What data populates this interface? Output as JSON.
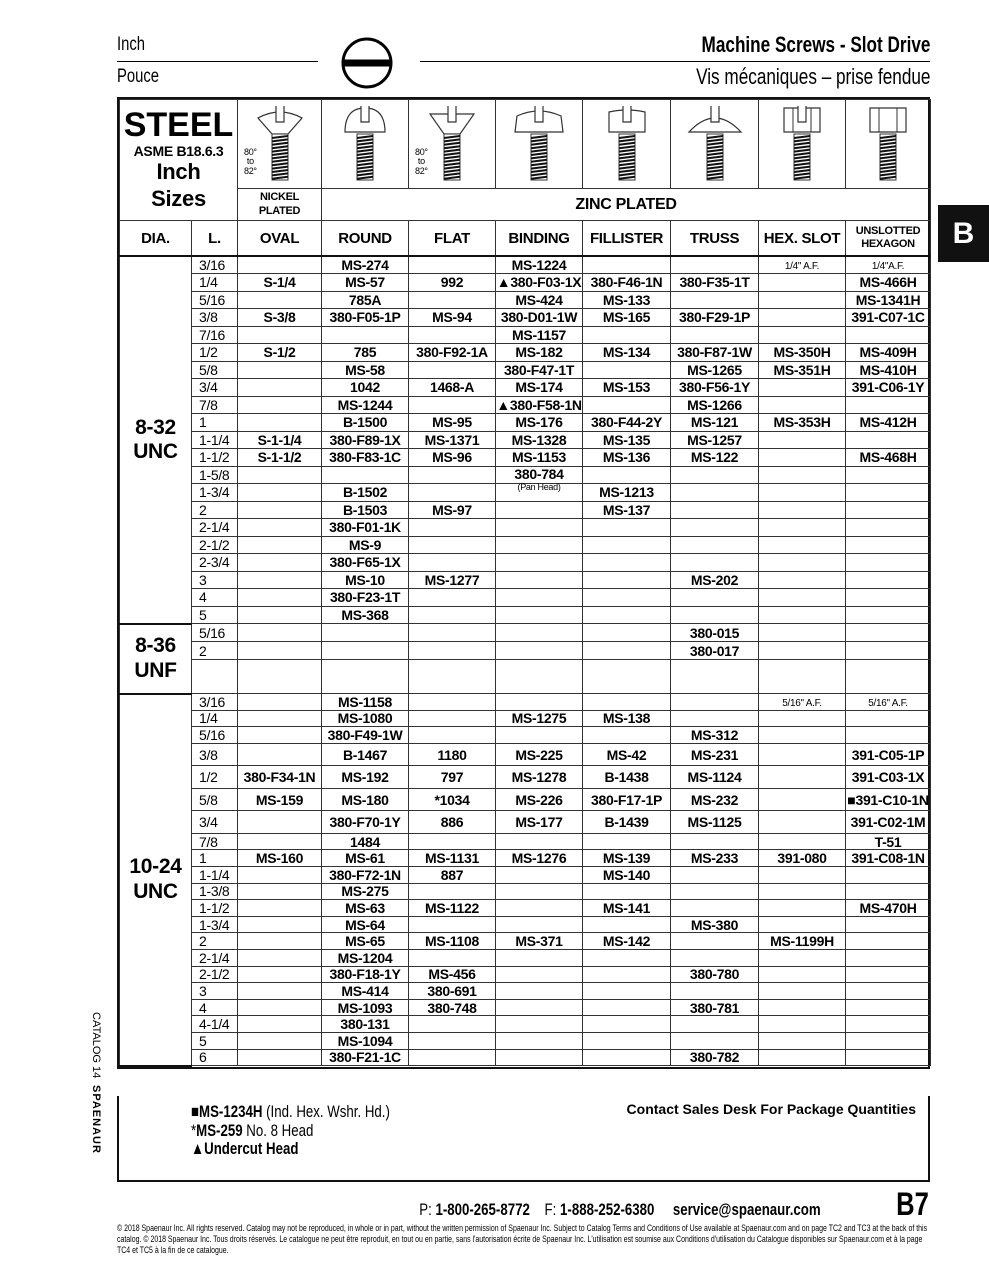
{
  "header": {
    "left_en": "Inch",
    "left_fr": "Pouce",
    "title_en": "Machine Screws - Slot Drive",
    "title_fr": "Vis mécaniques – prise fendue",
    "drive_icon": "slot-drive-icon"
  },
  "section_tab": "B",
  "table": {
    "material": "STEEL",
    "standard": "ASME B18.6.3",
    "sizes_label_1": "Inch",
    "sizes_label_2": "Sizes",
    "angle_note": [
      "80°",
      "to",
      "82°"
    ],
    "nickel_plated": [
      "NICKEL",
      "PLATED"
    ],
    "zinc_plated": "ZINC PLATED",
    "dia_header": "DIA.",
    "len_header": "L.",
    "columns": [
      {
        "label": "OVAL",
        "icon": "oval-head-screw-icon"
      },
      {
        "label": "ROUND",
        "icon": "round-head-screw-icon"
      },
      {
        "label": "FLAT",
        "icon": "flat-head-screw-icon"
      },
      {
        "label": "BINDING",
        "icon": "binding-head-screw-icon"
      },
      {
        "label": "FILLISTER",
        "icon": "fillister-head-screw-icon"
      },
      {
        "label": "TRUSS",
        "icon": "truss-head-screw-icon"
      },
      {
        "label": "HEX. SLOT",
        "icon": "hex-slot-head-screw-icon"
      },
      {
        "label": "UNSLOTTED HEXAGON",
        "icon": "unslotted-hex-head-screw-icon"
      }
    ],
    "groups": [
      {
        "dia": [
          "8-32",
          "UNC"
        ],
        "rows": [
          {
            "len": "3/16",
            "cells": [
              "",
              "MS-274",
              "",
              "MS-1224",
              "",
              "",
              "1/4\" A.F.",
              "1/4\"A.F."
            ]
          },
          {
            "len": "1/4",
            "cells": [
              "S-1/4",
              "MS-57",
              "992",
              "▲380-F03-1X",
              "380-F46-1N",
              "380-F35-1T",
              "",
              "MS-466H"
            ]
          },
          {
            "len": "5/16",
            "cells": [
              "",
              "785A",
              "",
              "MS-424",
              "MS-133",
              "",
              "",
              "MS-1341H"
            ]
          },
          {
            "len": "3/8",
            "cells": [
              "S-3/8",
              "380-F05-1P",
              "MS-94",
              "380-D01-1W",
              "MS-165",
              "380-F29-1P",
              "",
              "391-C07-1C"
            ]
          },
          {
            "len": "7/16",
            "cells": [
              "",
              "",
              "",
              "MS-1157",
              "",
              "",
              "",
              ""
            ]
          },
          {
            "len": "1/2",
            "cells": [
              "S-1/2",
              "785",
              "380-F92-1A",
              "MS-182",
              "MS-134",
              "380-F87-1W",
              "MS-350H",
              "MS-409H"
            ]
          },
          {
            "len": "5/8",
            "cells": [
              "",
              "MS-58",
              "",
              "380-F47-1T",
              "",
              "MS-1265",
              "MS-351H",
              "MS-410H"
            ]
          },
          {
            "len": "3/4",
            "cells": [
              "",
              "1042",
              "1468-A",
              "MS-174",
              "MS-153",
              "380-F56-1Y",
              "",
              "391-C06-1Y"
            ]
          },
          {
            "len": "7/8",
            "cells": [
              "",
              "MS-1244",
              "",
              "▲380-F58-1N",
              "",
              "MS-1266",
              "",
              ""
            ]
          },
          {
            "len": "1",
            "cells": [
              "",
              "B-1500",
              "MS-95",
              "MS-176",
              "380-F44-2Y",
              "MS-121",
              "MS-353H",
              "MS-412H"
            ]
          },
          {
            "len": "1-1/4",
            "cells": [
              "S-1-1/4",
              "380-F89-1X",
              "MS-1371",
              "MS-1328",
              "MS-135",
              "MS-1257",
              "",
              ""
            ]
          },
          {
            "len": "1-1/2",
            "cells": [
              "S-1-1/2",
              "380-F83-1C",
              "MS-96",
              "MS-1153",
              "MS-136",
              "MS-122",
              "",
              "MS-468H"
            ]
          },
          {
            "len": "1-5/8",
            "cells": [
              "",
              "",
              "",
              "380-784",
              "",
              "",
              "",
              ""
            ],
            "note": "(Pan Head)"
          },
          {
            "len": "1-3/4",
            "cells": [
              "",
              "B-1502",
              "",
              "",
              "MS-1213",
              "",
              "",
              ""
            ]
          },
          {
            "len": "2",
            "cells": [
              "",
              "B-1503",
              "MS-97",
              "",
              "MS-137",
              "",
              "",
              ""
            ]
          },
          {
            "len": "2-1/4",
            "cells": [
              "",
              "380-F01-1K",
              "",
              "",
              "",
              "",
              "",
              ""
            ]
          },
          {
            "len": "2-1/2",
            "cells": [
              "",
              "MS-9",
              "",
              "",
              "",
              "",
              "",
              ""
            ]
          },
          {
            "len": "2-3/4",
            "cells": [
              "",
              "380-F65-1X",
              "",
              "",
              "",
              "",
              "",
              ""
            ]
          },
          {
            "len": "3",
            "cells": [
              "",
              "MS-10",
              "MS-1277",
              "",
              "",
              "MS-202",
              "",
              ""
            ]
          },
          {
            "len": "4",
            "cells": [
              "",
              "380-F23-1T",
              "",
              "",
              "",
              "",
              "",
              ""
            ]
          },
          {
            "len": "5",
            "cells": [
              "",
              "MS-368",
              "",
              "",
              "",
              "",
              "",
              ""
            ]
          }
        ]
      },
      {
        "dia": [
          "8-36",
          "UNF"
        ],
        "rows": [
          {
            "len": "5/16",
            "cells": [
              "",
              "",
              "",
              "",
              "",
              "380-015",
              "",
              ""
            ]
          },
          {
            "len": "2",
            "cells": [
              "",
              "",
              "",
              "",
              "",
              "380-017",
              "",
              ""
            ]
          },
          {
            "len": "",
            "cells": [
              "",
              "",
              "",
              "",
              "",
              "",
              "",
              ""
            ]
          }
        ]
      },
      {
        "dia": [
          "10-24",
          "UNC"
        ],
        "rows": [
          {
            "len": "3/16",
            "cells": [
              "",
              "MS-1158",
              "",
              "",
              "",
              "",
              "5/16\" A.F.",
              "5/16\" A.F."
            ]
          },
          {
            "len": "1/4",
            "cells": [
              "",
              "MS-1080",
              "",
              "MS-1275",
              "MS-138",
              "",
              "",
              ""
            ]
          },
          {
            "len": "5/16",
            "cells": [
              "",
              "380-F49-1W",
              "",
              "",
              "",
              "MS-312",
              "",
              ""
            ]
          },
          {
            "len": "3/8",
            "cells": [
              "",
              "B-1467",
              "1180",
              "MS-225",
              "MS-42",
              "MS-231",
              "",
              "391-C05-1P"
            ]
          },
          {
            "len": "1/2",
            "cells": [
              "380-F34-1N",
              "MS-192",
              "797",
              "MS-1278",
              "B-1438",
              "MS-1124",
              "",
              "391-C03-1X"
            ]
          },
          {
            "len": "5/8",
            "cells": [
              "MS-159",
              "MS-180",
              "*1034",
              "MS-226",
              "380-F17-1P",
              "MS-232",
              "",
              "■391-C10-1N"
            ]
          },
          {
            "len": "3/4",
            "cells": [
              "",
              "380-F70-1Y",
              "886",
              "MS-177",
              "B-1439",
              "MS-1125",
              "",
              "391-C02-1M"
            ]
          },
          {
            "len": "7/8",
            "cells": [
              "",
              "1484",
              "",
              "",
              "",
              "",
              "",
              "T-51"
            ]
          },
          {
            "len": "1",
            "cells": [
              "MS-160",
              "MS-61",
              "MS-1131",
              "MS-1276",
              "MS-139",
              "MS-233",
              "391-080",
              "391-C08-1N"
            ]
          },
          {
            "len": "1-1/4",
            "cells": [
              "",
              "380-F72-1N",
              "887",
              "",
              "MS-140",
              "",
              "",
              ""
            ]
          },
          {
            "len": "1-3/8",
            "cells": [
              "",
              "MS-275",
              "",
              "",
              "",
              "",
              "",
              ""
            ]
          },
          {
            "len": "1-1/2",
            "cells": [
              "",
              "MS-63",
              "MS-1122",
              "",
              "MS-141",
              "",
              "",
              "MS-470H"
            ]
          },
          {
            "len": "1-3/4",
            "cells": [
              "",
              "MS-64",
              "",
              "",
              "",
              "MS-380",
              "",
              ""
            ]
          },
          {
            "len": "2",
            "cells": [
              "",
              "MS-65",
              "MS-1108",
              "MS-371",
              "MS-142",
              "",
              "MS-1199H",
              ""
            ]
          },
          {
            "len": "2-1/4",
            "cells": [
              "",
              "MS-1204",
              "",
              "",
              "",
              "",
              "",
              ""
            ]
          },
          {
            "len": "2-1/2",
            "cells": [
              "",
              "380-F18-1Y",
              "MS-456",
              "",
              "",
              "380-780",
              "",
              ""
            ]
          },
          {
            "len": "3",
            "cells": [
              "",
              "MS-414",
              "380-691",
              "",
              "",
              "",
              "",
              ""
            ]
          },
          {
            "len": "4",
            "cells": [
              "",
              "MS-1093",
              "380-748",
              "",
              "",
              "380-781",
              "",
              ""
            ]
          },
          {
            "len": "4-1/4",
            "cells": [
              "",
              "380-131",
              "",
              "",
              "",
              "",
              "",
              ""
            ]
          },
          {
            "len": "5",
            "cells": [
              "",
              "MS-1094",
              "",
              "",
              "",
              "",
              "",
              ""
            ]
          },
          {
            "len": "6",
            "cells": [
              "",
              "380-F21-1C",
              "",
              "",
              "",
              "380-782",
              "",
              ""
            ]
          }
        ]
      }
    ]
  },
  "notes": [
    {
      "mark": "■",
      "part": "MS-1234H",
      "text": "(Ind. Hex. Wshr. Hd.)"
    },
    {
      "mark": "*",
      "part": "MS-259",
      "text": "No. 8 Head"
    },
    {
      "mark": "▲",
      "part": "Undercut Head",
      "text": ""
    }
  ],
  "contact_sales": "Contact Sales Desk For Package Quantities",
  "side_text": {
    "catalog": "CATALOG 14",
    "brand": "SPAENAUR"
  },
  "footer": {
    "phone_label": "P:",
    "phone": "1-800-265-8772",
    "fax_label": "F:",
    "fax": "1-888-252-6380",
    "email": "service@spaenaur.com",
    "page": "B7",
    "copyright": "© 2018 Spaenaur Inc. All rights reserved. Catalog may not be reproduced, in whole or in part, without the written permission of Spaenaur Inc. Subject to Catalog Terms and Conditions of Use available at Spaenaur.com and on page TC2 and TC3 at the back of this catalog. © 2018 Spaenaur Inc. Tous droits réservés. Le catalogue ne peut être reproduit, en tout ou en partie, sans l'autorisation écrite de Spaenaur Inc. L'utilisation est soumise aux Conditions d'utilisation du Catalogue disponibles sur Spaenaur.com et à la page TC4 et TC5 à la fin de ce catalogue."
  }
}
